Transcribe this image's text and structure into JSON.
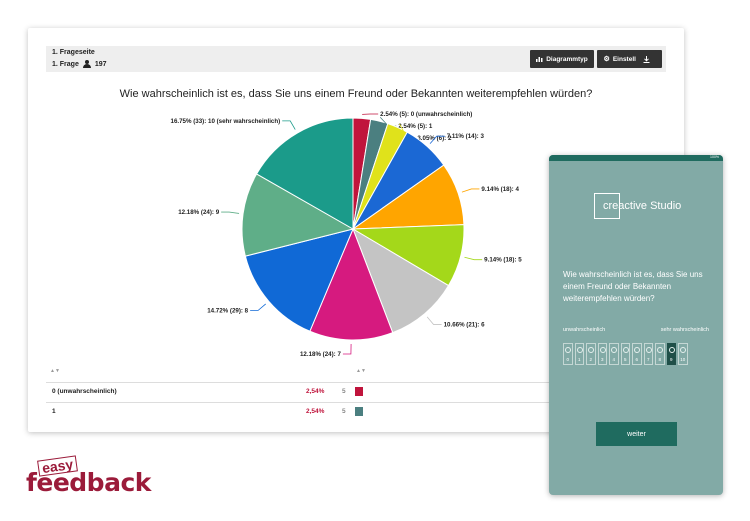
{
  "toolbar": {
    "page_label": "1. Frageseite",
    "question_label": "1. Frage",
    "respondents": "197",
    "chart_type_label": "Diagrammtyp",
    "settings_label": "Einstellungen"
  },
  "chart_data": {
    "type": "pie",
    "title": "Wie wahrscheinlich ist es, dass Sie uns einem Freund oder Bekannten weiterempfehlen würden?",
    "categories": [
      "0 (unwahrscheinlich)",
      "1",
      "2",
      "3",
      "4",
      "5",
      "6",
      "7",
      "8",
      "9",
      "10 (sehr wahrscheinlich)"
    ],
    "values": [
      2.54,
      2.54,
      3.05,
      7.11,
      9.14,
      9.14,
      10.66,
      12.18,
      14.72,
      12.18,
      16.75
    ],
    "counts": [
      5,
      5,
      6,
      14,
      18,
      18,
      21,
      24,
      29,
      24,
      33
    ],
    "labels": [
      "2.54% (5): 0 (unwahrscheinlich)",
      "2.54% (5): 1",
      "3.05% (6): 2",
      "7.11% (14): 3",
      "9.14% (18): 4",
      "9.14% (18): 5",
      "10.66% (21): 6",
      "12.18% (24): 7",
      "14.72% (29): 8",
      "12.18% (24): 9",
      "16.75% (33): 10 (sehr wahrscheinlich)"
    ],
    "colors": [
      "#c0143c",
      "#4b7f80",
      "#e0e21b",
      "#1b68d4",
      "#ffa500",
      "#a4d81a",
      "#c4c4c4",
      "#d61a7f",
      "#1069d6",
      "#5fae88",
      "#1b9b8a"
    ]
  },
  "table": {
    "rows": [
      {
        "label": "0 (unwahrscheinlich)",
        "percent": "2,54%",
        "count": "5",
        "color": "#c0143c"
      },
      {
        "label": "1",
        "percent": "2,54%",
        "count": "5",
        "color": "#4b7f80"
      }
    ]
  },
  "brand": {
    "easy": "easy",
    "feedback": "feedback"
  },
  "mobile": {
    "status": "100%",
    "logo_text": "creactive Studio",
    "question": "Wie wahrscheinlich ist es, dass Sie uns einem Freund oder Bekannten weiterempfehlen würden?",
    "low_label": "unwahrscheinlich",
    "high_label": "sehr wahrscheinlich",
    "scale": [
      "0",
      "1",
      "2",
      "3",
      "4",
      "5",
      "6",
      "7",
      "8",
      "9",
      "10"
    ],
    "selected": 9,
    "button_label": "weiter"
  }
}
